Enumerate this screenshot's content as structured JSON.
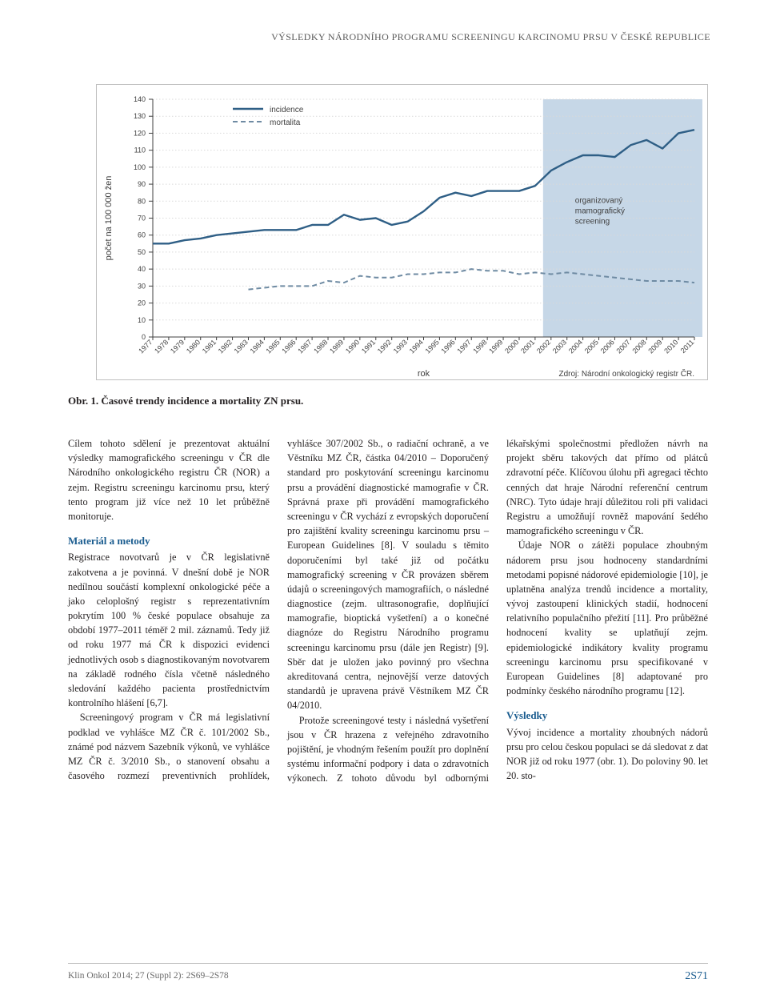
{
  "running_head": "VÝSLEDKY NÁRODNÍHO PROGRAMU SCREENINGU KARCINOMU PRSU V ČESKÉ REPUBLICE",
  "figure": {
    "type": "line",
    "y_axis_label": "počet na 100 000 žen",
    "x_axis_label": "rok",
    "ylim": [
      0,
      140
    ],
    "ytick_step": 10,
    "yticks": [
      0,
      10,
      20,
      30,
      40,
      50,
      60,
      70,
      80,
      90,
      100,
      110,
      120,
      130,
      140
    ],
    "years": [
      1977,
      1978,
      1979,
      1980,
      1981,
      1982,
      1983,
      1984,
      1985,
      1986,
      1987,
      1988,
      1989,
      1990,
      1991,
      1992,
      1993,
      1994,
      1995,
      1996,
      1997,
      1998,
      1999,
      2000,
      2001,
      2002,
      2003,
      2004,
      2005,
      2006,
      2007,
      2008,
      2009,
      2010,
      2011
    ],
    "incidence": [
      55,
      55,
      57,
      58,
      60,
      61,
      62,
      63,
      63,
      63,
      66,
      66,
      72,
      69,
      70,
      66,
      68,
      74,
      82,
      85,
      83,
      86,
      86,
      86,
      89,
      98,
      103,
      107,
      107,
      106,
      113,
      116,
      111,
      120,
      122
    ],
    "mortalita": [
      null,
      null,
      null,
      null,
      null,
      null,
      28,
      29,
      30,
      30,
      30,
      33,
      32,
      36,
      35,
      35,
      37,
      37,
      38,
      38,
      40,
      39,
      39,
      37,
      38,
      37,
      38,
      37,
      36,
      35,
      34,
      33,
      33,
      33,
      32
    ],
    "legend": {
      "incidence": "incidence",
      "mortalita": "mortalita"
    },
    "screening_band": {
      "start_year": 2002,
      "end_year": 2011,
      "label": "organizovaný mamografický screening"
    },
    "source_label": "Zdroj: Národní onkologický registr ČR.",
    "colors": {
      "incidence_line": "#2f5f86",
      "mortalita_line": "#6f8ba3",
      "screening_fill": "#bcd0e3",
      "grid": "#d9d9d9",
      "axis": "#404040",
      "text": "#404040"
    },
    "line_width_incidence": 2.4,
    "line_width_mortalita": 2.0,
    "mortalita_dash": "6,4",
    "axis_fontsize": 9,
    "label_fontsize": 11,
    "legend_fontsize": 10,
    "background_color": "#ffffff"
  },
  "fig_caption": "Obr. 1. Časové trendy incidence a mortality ZN prsu.",
  "text": {
    "p1": "Cílem tohoto sdělení je prezentovat aktuální výsledky mamografického screeningu v ČR dle Národního onkologického registru ČR (NOR) a zejm. Registru screeningu karcinomu prsu, který tento program již více než 10 let průběžně monitoruje.",
    "h_mm": "Materiál a metody",
    "p2": "Registrace novotvarů je v ČR legislativně zakotvena a je povinná. V dnešní době je NOR nedílnou součástí komplexní onkologické péče a jako celoplošný registr s reprezentativním pokrytím 100 % české populace obsahuje za období 1977–2011 téměř 2 mil. záznamů. Tedy již od roku 1977 má ČR k dispozici evidenci jednotlivých osob s diagnostikovaným novotvarem na základě rodného čísla včetně následného sledování každého pacienta prostřednictvím kontrolního hlášení [6,7].",
    "p3": "Screeningový program v ČR má legislativní podklad ve vyhlášce MZ ČR č. 101/2002 Sb., známé pod názvem Sazebník výkonů, ve vyhlášce MZ ČR č. 3/2010 Sb., o stanovení obsahu a časového rozmezí preventivních prohlídek, vyhlášce 307/2002 Sb., o radiační ochraně, a ve Věstníku MZ ČR, částka 04/2010 – Doporučený standard pro poskytování screeningu karcinomu prsu a provádění diagnostické mamografie v ČR. Správná praxe při provádění mamografického screeningu v ČR vychází z evropských doporučení pro zajištění kvality screeningu karcinomu prsu – European Guidelines [8]. V souladu s těmito doporučeními byl také již od počátku mamografický screening v ČR provázen sběrem údajů o screeningových mamografiích, o následné diagnostice (zejm. ultrasonografie, doplňující mamografie, bioptická vyšetření) a o konečné diagnóze do Registru Národního programu screeningu karcinomu prsu (dále jen Registr) [9]. Sběr dat je uložen jako povinný pro všechna akreditovaná centra, nejnovější verze datových standardů je upravena právě Věstníkem MZ ČR 04/2010.",
    "p4": "Protože screeningové testy i následná vyšetření jsou v ČR hrazena z veřejného zdravotního pojištění, je vhodným řešením použít pro doplnění systému informační podpory i data o zdravotních výkonech. Z tohoto důvodu byl odbornými lékařskými společnostmi předložen návrh na projekt sběru takových dat přímo od plátců zdravotní péče. Klíčovou úlohu při agregaci těchto cenných dat hraje Národní referenční centrum (NRC). Tyto údaje hrají důležitou roli při validaci Registru a umožňují rovněž mapování šedého mamografického screeningu v ČR.",
    "p5": "Údaje NOR o zátěži populace zhoubným nádorem prsu jsou hodnoceny standardními metodami popisné nádorové epidemiologie [10], je uplatněna analýza trendů incidence a mortality, vývoj zastoupení klinických stadií, hodnocení relativního populačního přežití [11]. Pro průběžné hodnocení kvality se uplatňují zejm. epidemiologické indikátory kvality programu screeningu karcinomu prsu specifikované v European Guidelines [8] adaptované pro podmínky českého národního programu [12].",
    "h_res": "Výsledky",
    "p6": "Vývoj incidence a mortality zhoubných nádorů prsu pro celou českou populaci se dá sledovat z dat NOR již od roku 1977 (obr. 1). Do poloviny 90. let 20. sto-"
  },
  "footer": {
    "left": "Klin Onkol 2014; 27 (Suppl 2): 2S69–2S78",
    "right": "2S71"
  }
}
